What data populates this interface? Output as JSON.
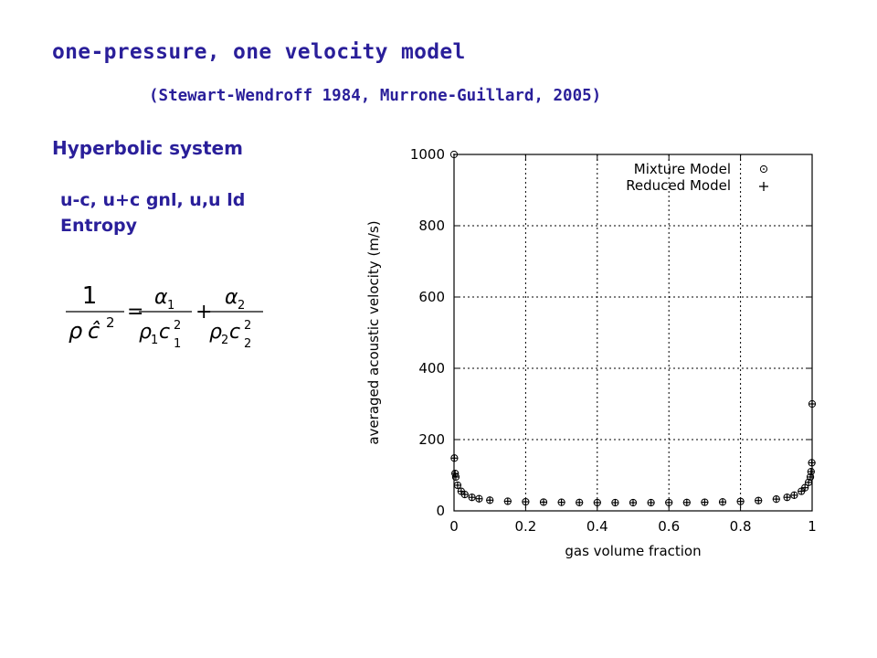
{
  "slide": {
    "title": "one-pressure, one velocity model",
    "subtitle": "(Stewart-Wendroff 1984, Murrone-Guillard, 2005)",
    "section": "Hyperbolic system",
    "bullets": [
      "u-c, u+c gnl, u,u ld",
      "Entropy"
    ],
    "colors": {
      "text": "#2a1f9a"
    }
  },
  "formula": {
    "lhs_numerator": "1",
    "lhs_denominator_rho": "ρ",
    "lhs_denominator_c": "ĉ",
    "exponent": "2",
    "equals": "=",
    "plus": "+",
    "term1_numerator": "α",
    "term1_numerator_sub": "1",
    "term1_rho": "ρ",
    "term1_rho_sub": "1",
    "term1_c": "c",
    "term1_c_sub": "1",
    "term2_numerator": "α",
    "term2_numerator_sub": "2",
    "term2_rho": "ρ",
    "term2_rho_sub": "2",
    "term2_c": "c",
    "term2_c_sub": "2"
  },
  "chart_data": {
    "type": "scatter",
    "xlabel": "gas volume fraction",
    "ylabel": "averaged acoustic velocity (m/s)",
    "xlim": [
      0,
      1
    ],
    "ylim": [
      0,
      1000
    ],
    "x_ticks": [
      "0",
      "0.2",
      "0.4",
      "0.6",
      "0.8",
      "1"
    ],
    "y_ticks": [
      "0",
      "200",
      "400",
      "600",
      "800",
      "1000"
    ],
    "grid": true,
    "legend_position": "top-right",
    "series": [
      {
        "name": "Mixture Model",
        "marker": "circle-dot",
        "x": [
          0,
          0.001,
          0.003,
          0.005,
          0.01,
          0.02,
          0.03,
          0.05,
          0.07,
          0.1,
          0.15,
          0.2,
          0.25,
          0.3,
          0.35,
          0.4,
          0.45,
          0.5,
          0.55,
          0.6,
          0.65,
          0.7,
          0.75,
          0.8,
          0.85,
          0.9,
          0.93,
          0.95,
          0.97,
          0.98,
          0.99,
          0.995,
          0.997,
          0.999,
          1
        ],
        "y": [
          1000,
          148,
          105,
          95,
          72,
          55,
          46,
          38,
          34,
          30,
          27,
          25.5,
          24.5,
          24,
          23.5,
          23.2,
          23.1,
          23,
          23.1,
          23.3,
          23.6,
          24.2,
          25,
          26.5,
          29,
          33,
          38,
          44,
          55,
          65,
          80,
          95,
          110,
          135,
          300
        ]
      },
      {
        "name": "Reduced Model",
        "marker": "plus",
        "x": [
          0.001,
          0.003,
          0.005,
          0.01,
          0.02,
          0.03,
          0.05,
          0.07,
          0.1,
          0.15,
          0.2,
          0.25,
          0.3,
          0.35,
          0.4,
          0.45,
          0.5,
          0.55,
          0.6,
          0.65,
          0.7,
          0.75,
          0.8,
          0.85,
          0.9,
          0.93,
          0.95,
          0.97,
          0.98,
          0.99,
          0.995,
          0.997,
          0.999,
          1
        ],
        "y": [
          148,
          105,
          95,
          72,
          55,
          46,
          38,
          34,
          30,
          27,
          25.5,
          24.5,
          24,
          23.5,
          23.2,
          23.1,
          23,
          23.1,
          23.3,
          23.6,
          24.2,
          25,
          26.5,
          29,
          33,
          38,
          44,
          55,
          65,
          80,
          95,
          110,
          135,
          300
        ]
      }
    ]
  }
}
